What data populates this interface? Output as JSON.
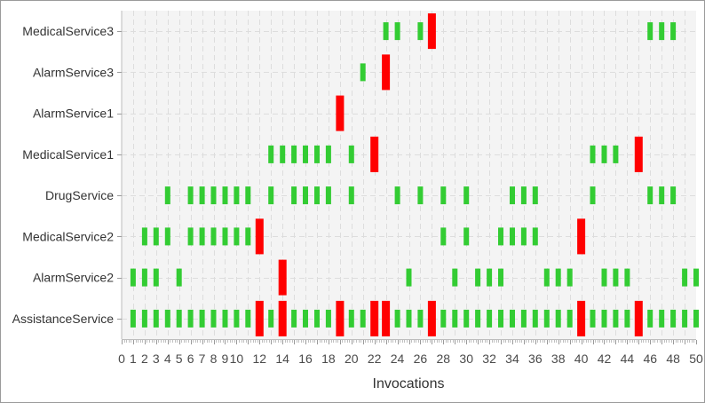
{
  "chart_data": {
    "type": "scatter",
    "title": "",
    "xlabel": "Invocations",
    "ylabel": "",
    "xlim": [
      0,
      50
    ],
    "x_tick_labels": [
      "0",
      "1",
      "2",
      "3",
      "4",
      "5",
      "6",
      "7",
      "8",
      "9",
      "10",
      "12",
      "14",
      "16",
      "18",
      "20",
      "22",
      "24",
      "26",
      "28",
      "30",
      "32",
      "34",
      "36",
      "38",
      "40",
      "42",
      "44",
      "46",
      "48",
      "50"
    ],
    "categories": [
      "AssistanceService",
      "AlarmService2",
      "MedicalService2",
      "DrugService",
      "MedicalService1",
      "AlarmService1",
      "AlarmService3",
      "MedicalService3"
    ],
    "grid": true,
    "colors": {
      "success": "#33cc33",
      "failure": "#ff0000",
      "plot_background": "#f4f4f4",
      "grid": "#dddddd"
    },
    "series": [
      {
        "status": "success",
        "points": {
          "AssistanceService": [
            1,
            2,
            3,
            4,
            5,
            6,
            7,
            8,
            9,
            10,
            11,
            13,
            15,
            16,
            17,
            18,
            20,
            21,
            24,
            25,
            26,
            28,
            29,
            30,
            31,
            32,
            33,
            34,
            35,
            36,
            37,
            38,
            39,
            41,
            42,
            43,
            44,
            46,
            47,
            48,
            49,
            50
          ],
          "AlarmService2": [
            1,
            2,
            3,
            5,
            25,
            29,
            31,
            32,
            33,
            37,
            38,
            39,
            42,
            43,
            44,
            49,
            50
          ],
          "MedicalService2": [
            2,
            3,
            4,
            6,
            7,
            8,
            9,
            10,
            11,
            28,
            30,
            33,
            34,
            35,
            36
          ],
          "DrugService": [
            4,
            6,
            7,
            8,
            9,
            10,
            11,
            13,
            15,
            16,
            17,
            18,
            20,
            24,
            26,
            28,
            30,
            34,
            35,
            36,
            41,
            46,
            47,
            48
          ],
          "MedicalService1": [
            13,
            14,
            15,
            16,
            17,
            18,
            20,
            41,
            42,
            43
          ],
          "AlarmService1": [],
          "AlarmService3": [
            21
          ],
          "MedicalService3": [
            23,
            24,
            26,
            46,
            47,
            48
          ]
        }
      },
      {
        "status": "failure",
        "points": {
          "AssistanceService": [
            12,
            14,
            19,
            22,
            23,
            27,
            40,
            45
          ],
          "AlarmService2": [
            14
          ],
          "MedicalService2": [
            12,
            40
          ],
          "DrugService": [],
          "MedicalService1": [
            22,
            45
          ],
          "AlarmService1": [
            19
          ],
          "AlarmService3": [
            23
          ],
          "MedicalService3": [
            27
          ]
        }
      }
    ]
  }
}
